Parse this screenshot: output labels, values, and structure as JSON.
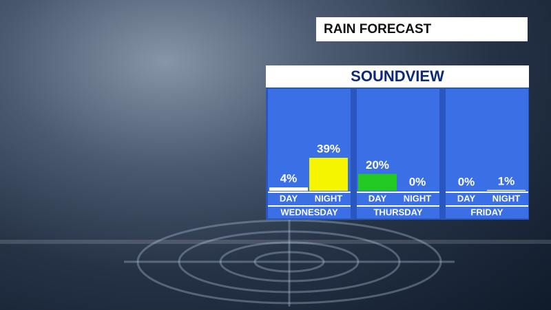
{
  "chart_data": {
    "type": "bar",
    "title": "RAIN FORECAST",
    "subtitle": "SOUNDVIEW",
    "groups": [
      "WEDNESDAY",
      "THURSDAY",
      "FRIDAY"
    ],
    "categories": [
      "DAY",
      "NIGHT",
      "DAY",
      "NIGHT",
      "DAY",
      "NIGHT"
    ],
    "values": [
      4,
      39,
      20,
      0,
      0,
      1
    ],
    "value_labels": [
      "4%",
      "39%",
      "20%",
      "0%",
      "0%",
      "1%"
    ],
    "colors": [
      "#ffffff",
      "#f5f500",
      "#22c922",
      "#ffffff",
      "#ffffff",
      "#ffffff"
    ]
  }
}
